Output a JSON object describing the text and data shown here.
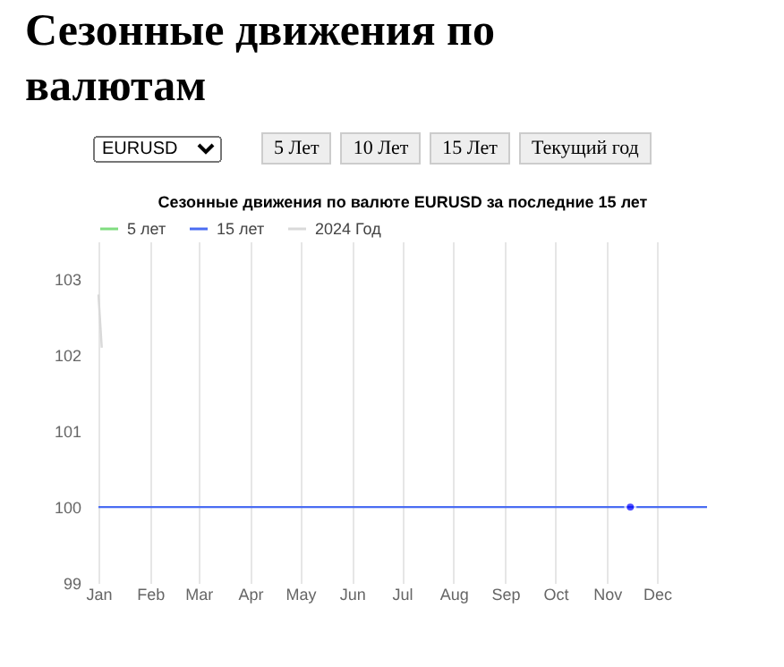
{
  "chart_data": {
    "type": "line",
    "title": "Сезонные движения по валютам",
    "subtitle": "Сезонные движения по валюте EURUSD за последние 15 лет",
    "annotations": [
      "EURUSD",
      "5 Лет",
      "10 Лет",
      "15 Лет",
      "Текущий год"
    ],
    "x": [
      "--01-01",
      "--12-31"
    ],
    "series": [
      {
        "name": "5 лет",
        "color": "#80dd80",
        "values": [
          null,
          null
        ]
      },
      {
        "name": "15 лет",
        "color": "#4a6cf2",
        "values": [
          100,
          100
        ]
      },
      {
        "name": "2024 Год",
        "color": "#d9d9d9",
        "x": [
          "--01-01",
          "--01-03"
        ],
        "values": [
          102.8,
          102.1
        ]
      },
      {
        "type": "scatter",
        "color": "#0000ff",
        "x": [
          "--11-15"
        ],
        "values": [
          100
        ]
      }
    ],
    "xlim": [
      "--01-01",
      "--12-31"
    ],
    "xticks": [
      {
        "value": "--01-01",
        "label": "Jan"
      },
      {
        "value": "--02-01",
        "label": "Feb"
      },
      {
        "value": "--03-01",
        "label": "Mar"
      },
      {
        "value": "--04-01",
        "label": "Apr"
      },
      {
        "value": "--05-01",
        "label": "May"
      },
      {
        "value": "--06-01",
        "label": "Jun"
      },
      {
        "value": "--07-01",
        "label": "Jul"
      },
      {
        "value": "--08-01",
        "label": "Aug"
      },
      {
        "value": "--09-01",
        "label": "Sep"
      },
      {
        "value": "--10-01",
        "label": "Oct"
      },
      {
        "value": "--11-01",
        "label": "Nov"
      },
      {
        "value": "--12-01",
        "label": "Dec"
      }
    ],
    "ylim": [
      99,
      103.5
    ],
    "yticks": [
      99,
      100,
      101,
      102,
      103
    ],
    "grid": "x",
    "legend": "top"
  }
}
